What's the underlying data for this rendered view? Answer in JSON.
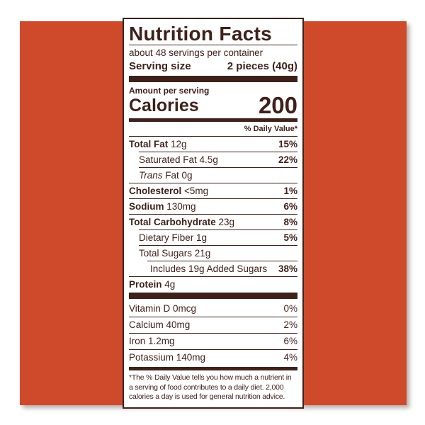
{
  "colors": {
    "page_background": "#FFFFFF",
    "card_background": "#CF4A2B",
    "label_background": "#FFFFFF",
    "label_text": "#3E211A",
    "label_border": "#3E211A"
  },
  "label": {
    "title": "Nutrition Facts",
    "servings_per_container": "about 48 servings per container",
    "serving_size_label": "Serving size",
    "serving_size_value": "2 pieces (40g)",
    "amount_per_serving": "Amount per serving",
    "calories_label": "Calories",
    "calories_value": "200",
    "daily_value_header": "% Daily Value*",
    "nutrients": [
      {
        "parts": [
          {
            "t": "Total Fat",
            "s": "b"
          },
          {
            "t": " 12g"
          }
        ],
        "dv": "15%",
        "dv_bold": true,
        "indent": 0,
        "rule_indent": 0
      },
      {
        "parts": [
          {
            "t": "Saturated Fat 4.5g"
          }
        ],
        "dv": "22%",
        "dv_bold": true,
        "indent": 14,
        "rule_indent": 14
      },
      {
        "parts": [
          {
            "t": "Trans",
            "s": "i"
          },
          {
            "t": " Fat 0g"
          }
        ],
        "dv": "",
        "dv_bold": false,
        "indent": 14,
        "rule_indent": 14
      },
      {
        "parts": [
          {
            "t": "Cholesterol",
            "s": "b"
          },
          {
            "t": " <5mg"
          }
        ],
        "dv": "1%",
        "dv_bold": true,
        "indent": 0,
        "rule_indent": 0
      },
      {
        "parts": [
          {
            "t": "Sodium",
            "s": "b"
          },
          {
            "t": " 130mg"
          }
        ],
        "dv": "6%",
        "dv_bold": true,
        "indent": 0,
        "rule_indent": 0
      },
      {
        "parts": [
          {
            "t": "Total Carbohydrate",
            "s": "b"
          },
          {
            "t": " 23g"
          }
        ],
        "dv": "8%",
        "dv_bold": true,
        "indent": 0,
        "rule_indent": 0
      },
      {
        "parts": [
          {
            "t": "Dietary Fiber 1g"
          }
        ],
        "dv": "5%",
        "dv_bold": true,
        "indent": 14,
        "rule_indent": 14
      },
      {
        "parts": [
          {
            "t": "Total Sugars 21g"
          }
        ],
        "dv": "",
        "dv_bold": false,
        "indent": 14,
        "rule_indent": 14
      },
      {
        "parts": [
          {
            "t": "Includes 19g Added Sugars"
          }
        ],
        "dv": "38%",
        "dv_bold": true,
        "indent": 30,
        "rule_indent": 26
      },
      {
        "parts": [
          {
            "t": "Protein",
            "s": "b"
          },
          {
            "t": " 4g"
          }
        ],
        "dv": "",
        "dv_bold": false,
        "indent": 0,
        "rule_indent": 0
      }
    ],
    "micronutrients": [
      {
        "parts": [
          {
            "t": "Vitamin D 0mcg"
          }
        ],
        "dv": "0%",
        "dv_bold": false,
        "indent": 0,
        "rule_indent": null
      },
      {
        "parts": [
          {
            "t": "Calcium 40mg"
          }
        ],
        "dv": "2%",
        "dv_bold": false,
        "indent": 0,
        "rule_indent": 0
      },
      {
        "parts": [
          {
            "t": "Iron 1.2mg"
          }
        ],
        "dv": "6%",
        "dv_bold": false,
        "indent": 0,
        "rule_indent": 0
      },
      {
        "parts": [
          {
            "t": "Potassium 140mg"
          }
        ],
        "dv": "4%",
        "dv_bold": false,
        "indent": 0,
        "rule_indent": 0
      }
    ],
    "footnote_lines": [
      "*The % Daily Value tells you how much a nutrient in",
      "a serving of food contributes to a daily diet. 2,000",
      "calories a day is used for general nutrition advice."
    ]
  }
}
